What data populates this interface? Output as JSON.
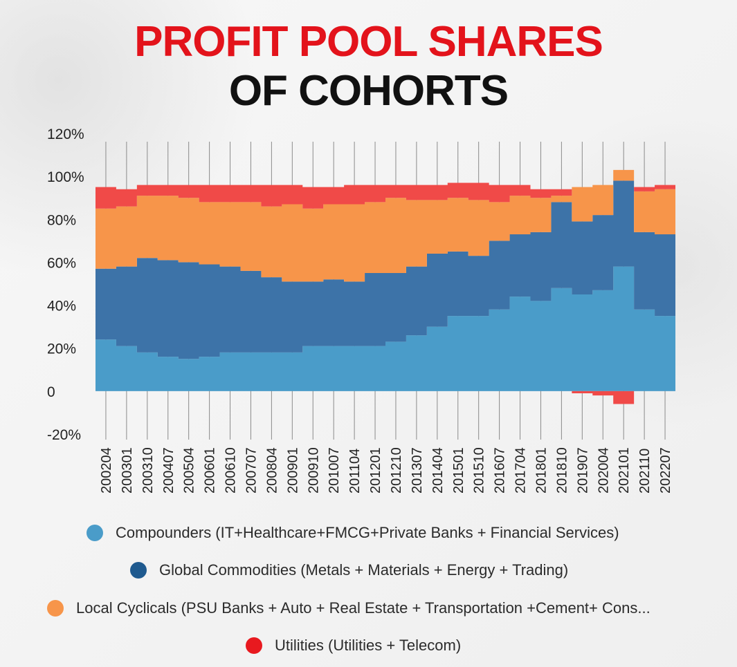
{
  "title_line1": "PROFIT POOL SHARES",
  "title_line2": "OF COHORTS",
  "colors": {
    "title_red": "#e3131b",
    "compounders": "#4a9cc9",
    "commodities": "#3d73a8",
    "cyclicals": "#f7954a",
    "utilities": "#f04a48"
  },
  "chart_data": {
    "type": "area",
    "stacked": true,
    "ylim": [
      -20,
      120
    ],
    "y_ticks": [
      "-20%",
      "0",
      "20%",
      "40%",
      "60%",
      "80%",
      "100%",
      "120%"
    ],
    "y_tick_values": [
      -20,
      0,
      20,
      40,
      60,
      80,
      100,
      120
    ],
    "x_tick_labels": [
      "200204",
      "200301",
      "200310",
      "200407",
      "200504",
      "200601",
      "200610",
      "200707",
      "200804",
      "200901",
      "200910",
      "201007",
      "201104",
      "201201",
      "201210",
      "201307",
      "201404",
      "201501",
      "201510",
      "201607",
      "201704",
      "201801",
      "201810",
      "201907",
      "202004",
      "202101",
      "202110",
      "202207"
    ],
    "grid": "vertical",
    "legend_position": "bottom",
    "series": [
      {
        "name": "Compounders (IT+Healthcare+FMCG+Private Banks + Financial Services)",
        "color": "#4a9cc9",
        "values": [
          24,
          21,
          18,
          16,
          15,
          16,
          18,
          18,
          18,
          18,
          21,
          21,
          21,
          21,
          23,
          26,
          30,
          35,
          35,
          38,
          44,
          42,
          48,
          45,
          47,
          58,
          38,
          35
        ]
      },
      {
        "name": "Global Commodities (Metals + Materials + Energy + Trading)",
        "color": "#3d73a8",
        "values": [
          33,
          37,
          44,
          45,
          45,
          43,
          40,
          38,
          35,
          33,
          30,
          31,
          30,
          34,
          32,
          32,
          34,
          30,
          28,
          32,
          29,
          32,
          40,
          34,
          35,
          40,
          36,
          38
        ]
      },
      {
        "name": "Local Cyclicals (PSU Banks + Auto + Real Estate + Transportation +Cement+ Cons...",
        "color": "#f7954a",
        "values": [
          28,
          28,
          29,
          30,
          30,
          29,
          30,
          32,
          33,
          36,
          34,
          35,
          36,
          33,
          35,
          31,
          25,
          25,
          26,
          18,
          18,
          16,
          3,
          16,
          14,
          5,
          19,
          21
        ]
      },
      {
        "name": "Utilities (Utilities + Telecom)",
        "color": "#f04a48",
        "values": [
          10,
          8,
          5,
          5,
          6,
          8,
          8,
          8,
          10,
          9,
          10,
          8,
          9,
          8,
          6,
          7,
          7,
          7,
          8,
          8,
          5,
          4,
          3,
          -1,
          -2,
          -6,
          2,
          2
        ]
      }
    ]
  },
  "legend": [
    {
      "label": "Compounders (IT+Healthcare+FMCG+Private Banks + Financial Services)",
      "color": "#4a9cc9"
    },
    {
      "label": "Global Commodities (Metals + Materials + Energy + Trading)",
      "color": "#1f5a8f"
    },
    {
      "label": "Local Cyclicals (PSU Banks + Auto + Real Estate + Transportation +Cement+ Cons...",
      "color": "#f7954a"
    },
    {
      "label": "Utilities (Utilities + Telecom)",
      "color": "#e8191f"
    }
  ]
}
